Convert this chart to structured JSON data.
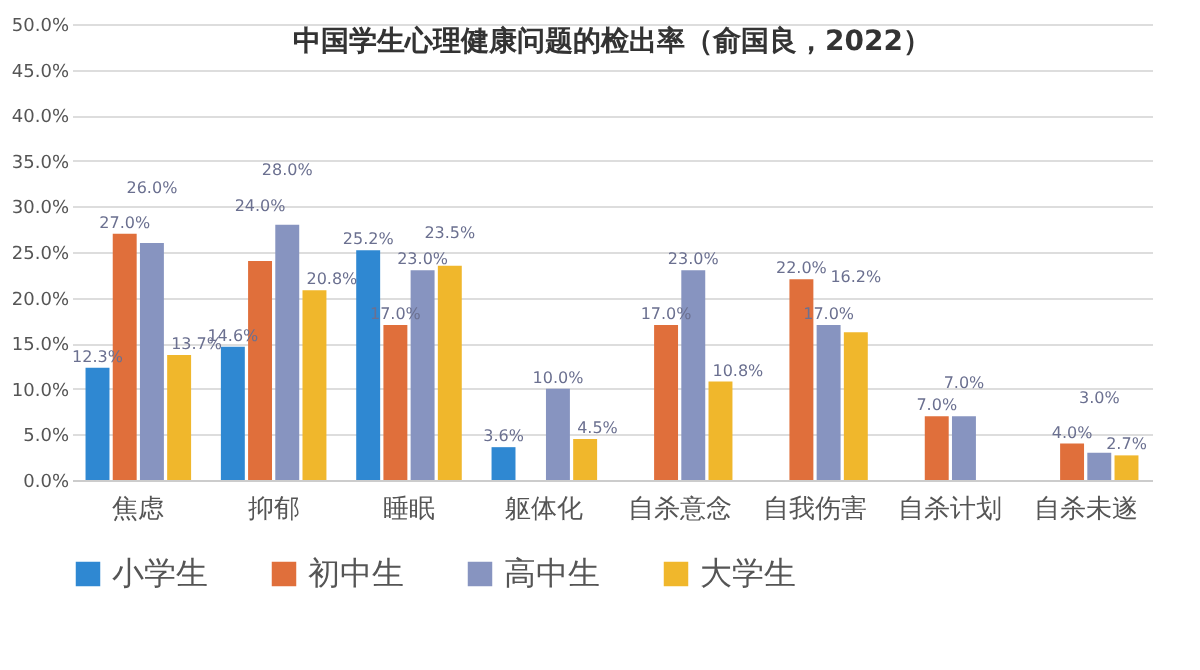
{
  "chart_data": {
    "type": "bar",
    "title": "中国学生心理健康问题的检出率（俞国良，2022）",
    "categories": [
      "焦虑",
      "抑郁",
      "睡眠",
      "躯体化",
      "自杀意念",
      "自我伤害",
      "自杀计划",
      "自杀未遂"
    ],
    "series": [
      {
        "name": "小学生",
        "color": "#2f88d2",
        "values": [
          12.3,
          14.6,
          25.2,
          3.6,
          null,
          null,
          null,
          null
        ],
        "value_labels": [
          "12.3%",
          "14.6%",
          "25.2%",
          "3.6%",
          null,
          null,
          null,
          null
        ]
      },
      {
        "name": "初中生",
        "color": "#e06f3b",
        "values": [
          27.0,
          24.0,
          17.0,
          null,
          17.0,
          22.0,
          7.0,
          4.0
        ],
        "value_labels": [
          "27.0%",
          "24.0%",
          "17.0%",
          null,
          "17.0%",
          "22.0%",
          "7.0%",
          "4.0%"
        ]
      },
      {
        "name": "高中生",
        "color": "#8794c0",
        "values": [
          26.0,
          28.0,
          23.0,
          10.0,
          23.0,
          17.0,
          7.0,
          3.0
        ],
        "value_labels": [
          "26.0%",
          "28.0%",
          "23.0%",
          "10.0%",
          "23.0%",
          "17.0%",
          "7.0%",
          "3.0%"
        ]
      },
      {
        "name": "大学生",
        "color": "#f0b72c",
        "values": [
          13.7,
          20.8,
          23.5,
          4.5,
          10.8,
          16.2,
          null,
          2.7
        ],
        "value_labels": [
          "13.7%",
          "20.8%",
          "23.5%",
          "4.5%",
          "10.8%",
          "16.2%",
          null,
          "2.7%"
        ]
      }
    ],
    "ylim": [
      0,
      50
    ],
    "yticks": [
      {
        "value": 0,
        "label": "0.0%"
      },
      {
        "value": 5,
        "label": "5.0%"
      },
      {
        "value": 10,
        "label": "10.0%"
      },
      {
        "value": 15,
        "label": "15.0%"
      },
      {
        "value": 20,
        "label": "20.0%"
      },
      {
        "value": 25,
        "label": "25.0%"
      },
      {
        "value": 30,
        "label": "30.0%"
      },
      {
        "value": 35,
        "label": "35.0%"
      },
      {
        "value": 40,
        "label": "40.0%"
      },
      {
        "value": 45,
        "label": "45.0%"
      },
      {
        "value": 50,
        "label": "50.0%"
      }
    ],
    "grid": "y",
    "legend": "bottom"
  }
}
